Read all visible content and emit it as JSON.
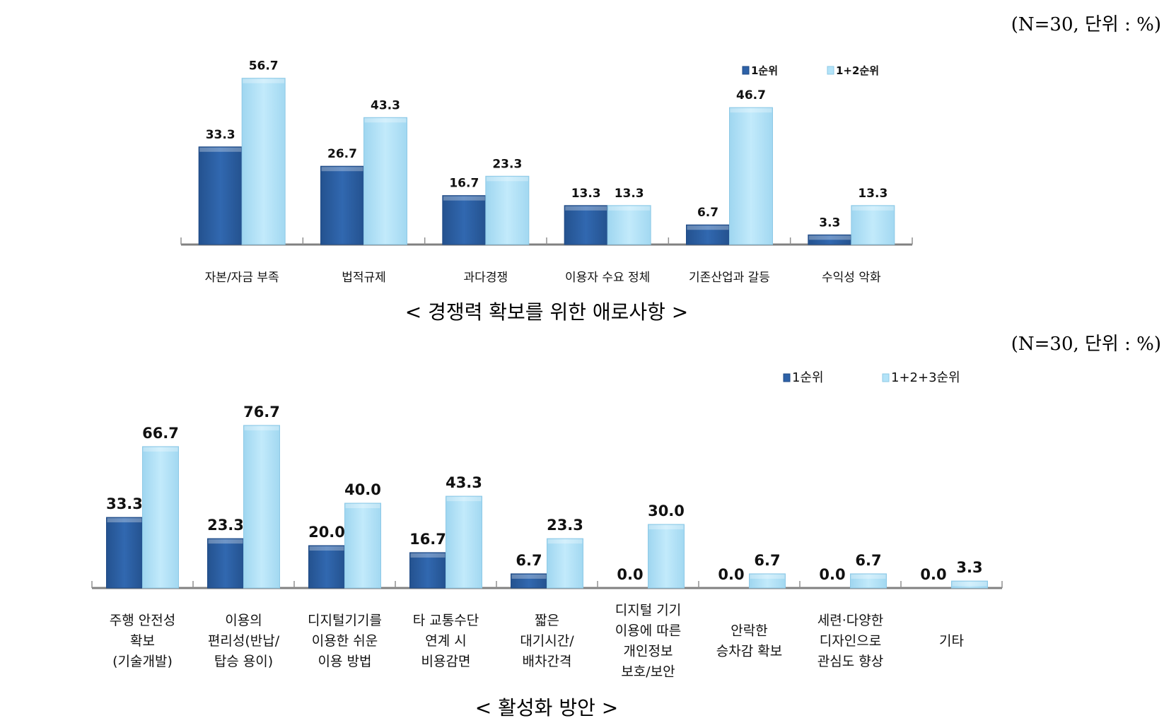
{
  "chart_data": [
    {
      "type": "bar",
      "title": "< 경쟁력 확보를 위한 애로사항 >",
      "note": "(N=30, 단위 : %)",
      "categories": [
        "자본/자금 부족",
        "법적규제",
        "과다경쟁",
        "이용자 수요 정체",
        "기존산업과 갈등",
        "수익성 악화"
      ],
      "series": [
        {
          "name": "1순위",
          "values": [
            33.3,
            26.7,
            16.7,
            13.3,
            6.7,
            3.3
          ],
          "color": "#2E62A8"
        },
        {
          "name": "1+2순위",
          "values": [
            56.7,
            43.3,
            23.3,
            13.3,
            46.7,
            13.3
          ],
          "color": "#B3E3F8"
        }
      ],
      "legend": "top-right",
      "grid": false
    },
    {
      "type": "bar",
      "title": "< 활성화 방안 >",
      "note": "(N=30, 단위 : %)",
      "categories": [
        [
          "주행 안전성",
          "확보",
          "(기술개발)"
        ],
        [
          "이용의",
          "편리성(반납/",
          "탑승 용이)"
        ],
        [
          "디지털기기를",
          "이용한 쉬운",
          "이용 방법"
        ],
        [
          "타 교통수단",
          "연계 시",
          "비용감면"
        ],
        [
          "짧은",
          "대기시간/",
          "배차간격"
        ],
        [
          "디지털 기기",
          "이용에 따른",
          "개인정보",
          "보호/보안"
        ],
        [
          "안락한",
          "승차감 확보"
        ],
        [
          "세련·다양한",
          "디자인으로",
          "관심도 향상"
        ],
        [
          "기타"
        ]
      ],
      "series": [
        {
          "name": "1순위",
          "values": [
            33.3,
            23.3,
            20.0,
            16.7,
            6.7,
            0.0,
            0.0,
            0.0,
            0.0
          ],
          "color": "#2E62A8"
        },
        {
          "name": "1+2+3순위",
          "values": [
            66.7,
            76.7,
            40.0,
            43.3,
            23.3,
            30.0,
            6.7,
            6.7,
            3.3
          ],
          "color": "#B3E3F8"
        }
      ],
      "legend": "top-right",
      "grid": false
    }
  ]
}
